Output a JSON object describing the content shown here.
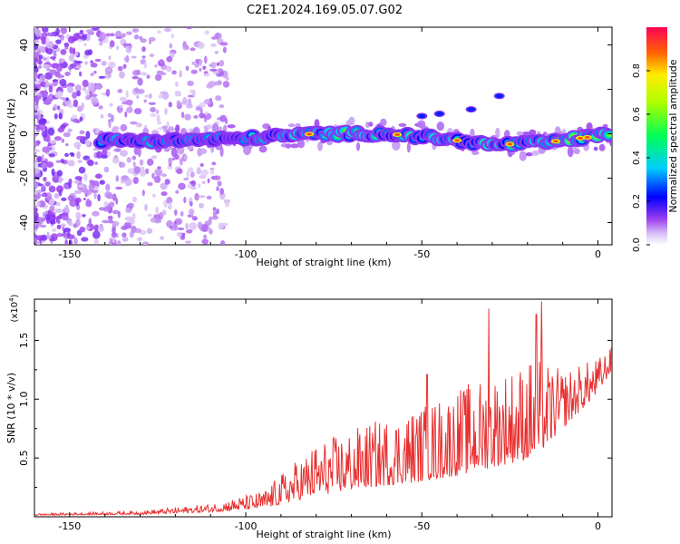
{
  "title": "C2E1.2024.169.05.07.G02",
  "chart_data": [
    {
      "type": "heatmap",
      "xlabel": "Height of straight line (km)",
      "ylabel": "Frequency (Hz)",
      "xlim": [
        -160,
        4
      ],
      "ylim": [
        -50,
        48
      ],
      "xticks": [
        -150,
        -100,
        -50,
        0
      ],
      "yticks": [
        -40,
        -20,
        0,
        20,
        40
      ],
      "colorbar": {
        "label": "Normalized spectral amplitude",
        "range": [
          0,
          1
        ],
        "ticks": [
          "0.0",
          "0.2",
          "0.4",
          "0.6",
          "0.8"
        ]
      },
      "ridge": {
        "description_points": [
          {
            "x": -141,
            "y": -3
          },
          {
            "x": -120,
            "y": -3
          },
          {
            "x": -100,
            "y": -2
          },
          {
            "x": -80,
            "y": 0
          },
          {
            "x": -60,
            "y": 0
          },
          {
            "x": -45,
            "y": -2
          },
          {
            "x": -30,
            "y": -5
          },
          {
            "x": -15,
            "y": -4
          },
          {
            "x": 0,
            "y": -1
          },
          {
            "x": 4,
            "y": 0
          }
        ],
        "features": [
          {
            "x": -50,
            "y": 8
          },
          {
            "x": -45,
            "y": 9
          },
          {
            "x": -36,
            "y": 11
          },
          {
            "x": -28,
            "y": 17
          }
        ]
      }
    },
    {
      "type": "line",
      "xlabel": "Height of straight line (km)",
      "ylabel": "SNR (10 * v/v)",
      "multiplier": "(x10^4)",
      "multiplier_base": "(x10",
      "multiplier_exp": "4",
      "xlim": [
        -160,
        4
      ],
      "ylim": [
        0,
        18500
      ],
      "xticks": [
        -150,
        -100,
        -50,
        0
      ],
      "yticks": [
        {
          "value": 5000,
          "label": "0.5"
        },
        {
          "value": 10000,
          "label": "1.0"
        },
        {
          "value": 15000,
          "label": "1.5"
        }
      ],
      "series": [
        {
          "color": "#e83030",
          "envelope": [
            {
              "x": -160,
              "base": 120,
              "amp": 150
            },
            {
              "x": -130,
              "base": 200,
              "amp": 300
            },
            {
              "x": -110,
              "base": 400,
              "amp": 700
            },
            {
              "x": -95,
              "base": 700,
              "amp": 1500
            },
            {
              "x": -88,
              "base": 1200,
              "amp": 3000
            },
            {
              "x": -80,
              "base": 1800,
              "amp": 4500
            },
            {
              "x": -65,
              "base": 2500,
              "amp": 5500
            },
            {
              "x": -50,
              "base": 3000,
              "amp": 6500
            },
            {
              "x": -40,
              "base": 3500,
              "amp": 7500
            },
            {
              "x": -30,
              "base": 4200,
              "amp": 8000
            },
            {
              "x": -18,
              "base": 5000,
              "amp": 8500
            },
            {
              "x": -10,
              "base": 7500,
              "amp": 5000
            },
            {
              "x": 0,
              "base": 10500,
              "amp": 3000
            },
            {
              "x": 4,
              "base": 12500,
              "amp": 2000
            }
          ],
          "spikes": [
            {
              "x": -31,
              "y": 17700
            },
            {
              "x": -17.5,
              "y": 17200
            },
            {
              "x": -16,
              "y": 18300
            },
            {
              "x": -48.5,
              "y": 12100
            },
            {
              "x": -19,
              "y": 12900
            }
          ]
        }
      ]
    }
  ]
}
